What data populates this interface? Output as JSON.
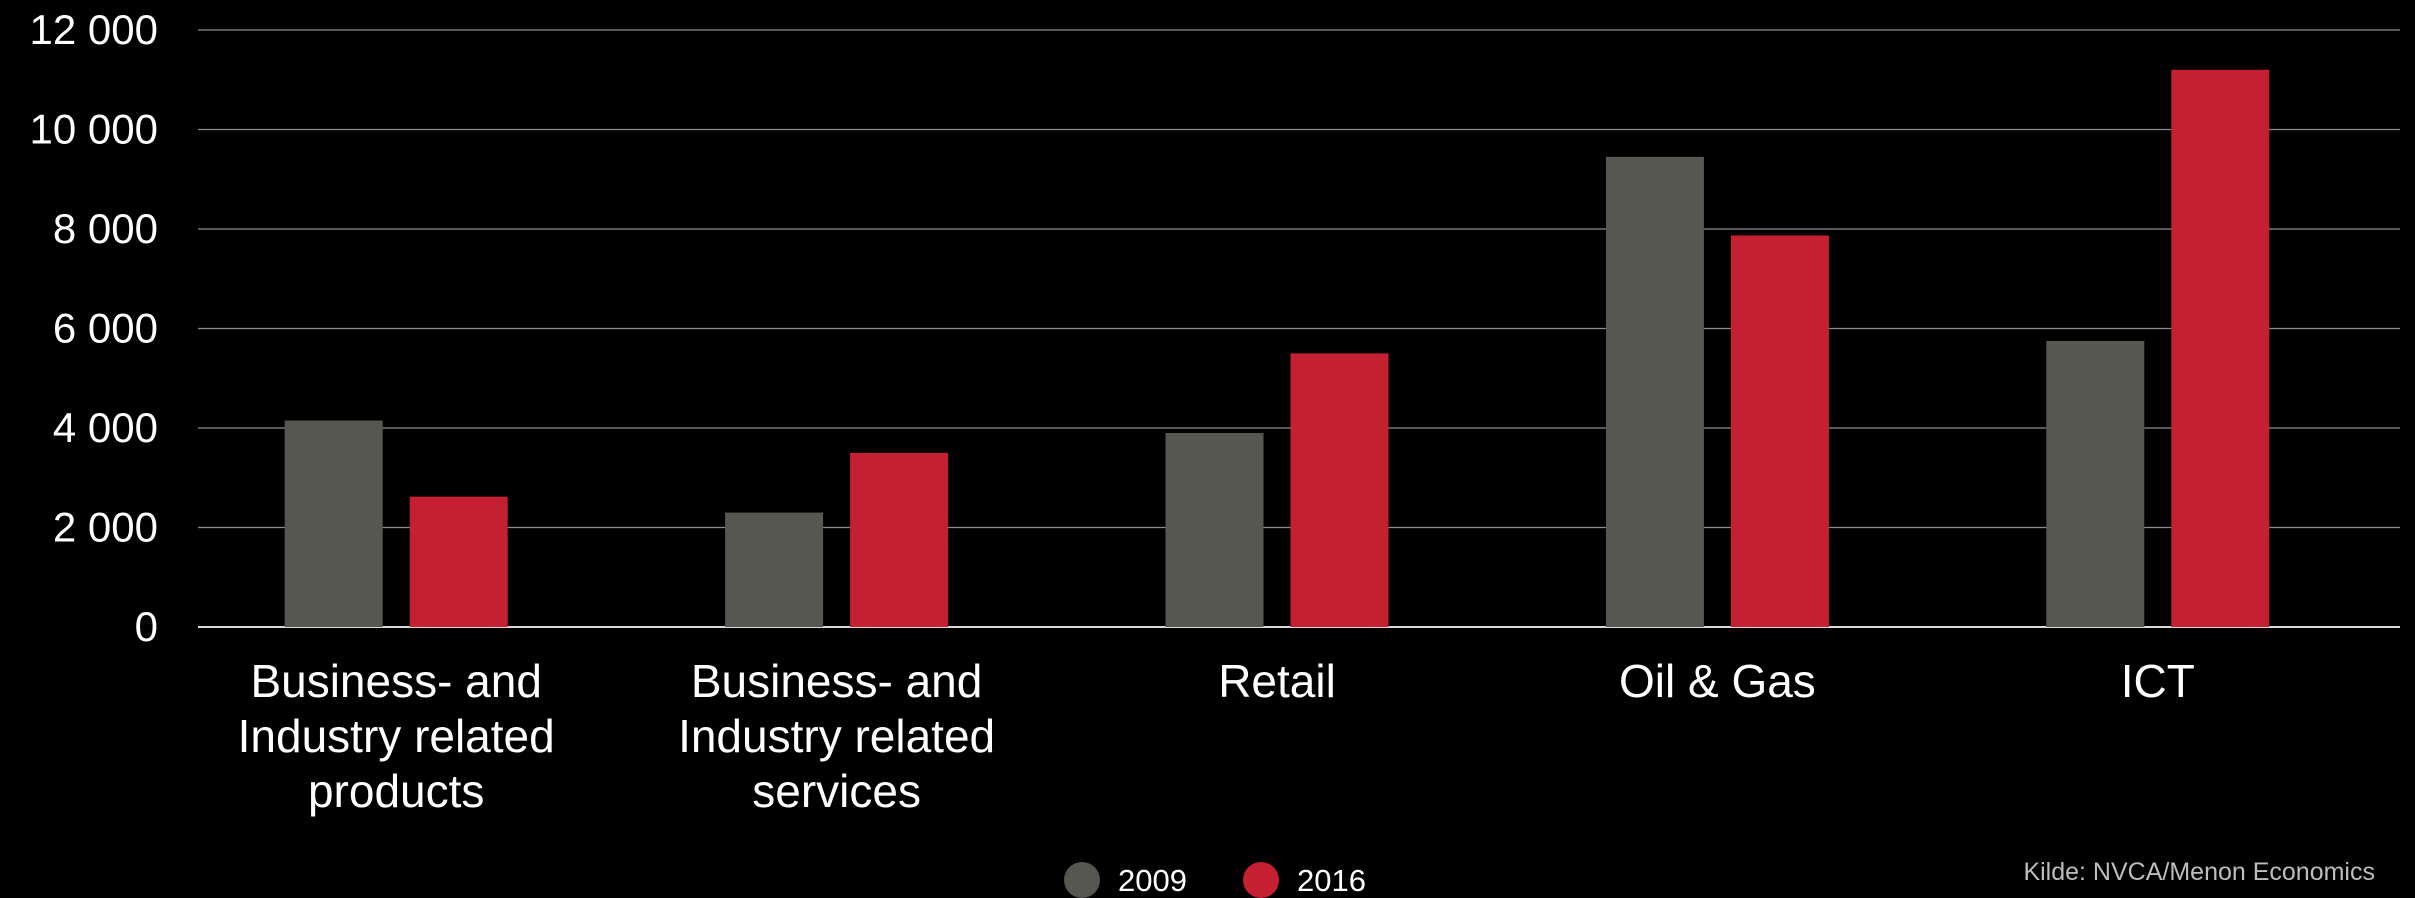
{
  "chart_data": {
    "type": "bar",
    "categories": [
      [
        "Business- and",
        "Industry related",
        "products"
      ],
      [
        "Business- and",
        "Industry related",
        "services"
      ],
      [
        "Retail"
      ],
      [
        "Oil & Gas"
      ],
      [
        "ICT"
      ]
    ],
    "series": [
      {
        "name": "2009",
        "color": "#575752",
        "values": [
          4150,
          2300,
          3900,
          9450,
          5750
        ]
      },
      {
        "name": "2016",
        "color": "#c42032",
        "values": [
          2620,
          3500,
          5500,
          7870,
          11200
        ]
      }
    ],
    "ylim": [
      0,
      12000
    ],
    "ytick_labels": [
      "0",
      "2 000",
      "4 000",
      "6 000",
      "8 000",
      "10 000",
      "12 000"
    ],
    "grid": true,
    "legend_position": "bottom",
    "source": "Kilde: NVCA/Menon Economics"
  }
}
